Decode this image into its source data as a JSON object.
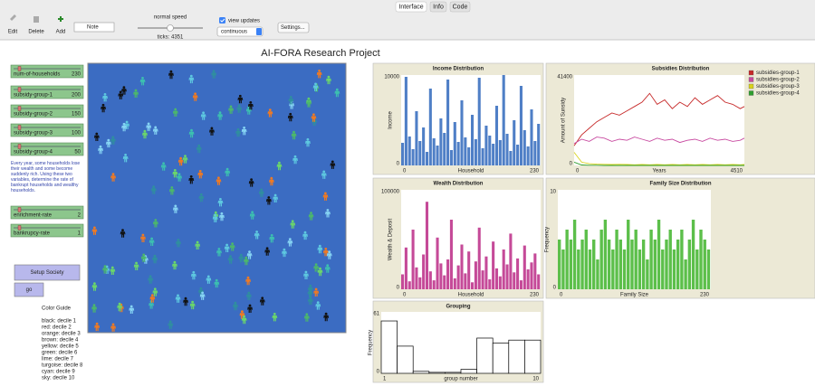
{
  "tabs": [
    "Interface",
    "Info",
    "Code"
  ],
  "toolbar": {
    "edit": "Edit",
    "delete": "Delete",
    "add": "Add",
    "widget": "Note",
    "speed": "normal speed",
    "ticks": "ticks: 4351",
    "view_updates": "view updates",
    "update_mode": "continuous",
    "settings": "Settings..."
  },
  "title": "AI-FORA Research Project",
  "sliders": [
    {
      "label": "num-of-households",
      "value": 230
    },
    {
      "label": "subsidy-group-1",
      "value": 200
    },
    {
      "label": "subsidy-group-2",
      "value": 150
    },
    {
      "label": "subsidy-group-3",
      "value": 100
    },
    {
      "label": "subsidy-group-4",
      "value": 50
    },
    {
      "label": "enrichment-rate",
      "value": 2
    },
    {
      "label": "bankrupcy-rate",
      "value": 1
    }
  ],
  "note": "Every year, some households lose their wealth and some become suddenly rich. Using these two variables, determine the rate of bankrupt households and wealthy households.",
  "buttons": [
    "Setup Society",
    "go"
  ],
  "color_guide": {
    "title": "Color Guide",
    "lines": [
      "black: decile 1",
      "red: decile 2",
      "orange: decile 3",
      "brown: decile 4",
      "yellow: decile 5",
      "green: decile 6",
      "lime: decile 7",
      "turgoise: decile 8",
      "cyan: decile 9",
      "sky: decile 10"
    ]
  },
  "world": {
    "background": "#3b6cc2",
    "agent_colors": [
      "#111111",
      "#f07a22",
      "#4cb86a",
      "#3cc0b0",
      "#86d4f4",
      "#5ec8e0",
      "#6bd66b",
      "#2f8f9e"
    ]
  },
  "plots": [
    {
      "type": "bar",
      "title": "Income Distribution",
      "ylabel": "Income",
      "xlabel": "Household",
      "color": "#4f7fc6",
      "ylim": [
        0,
        10000
      ],
      "yticks": [
        0,
        10000
      ],
      "xticks": [
        0,
        230
      ],
      "values": [
        2500,
        9800,
        3200,
        1800,
        6000,
        2700,
        4200,
        1500,
        8500,
        3000,
        2200,
        5200,
        3600,
        9500,
        1700,
        4800,
        2600,
        7200,
        3100,
        2000,
        5600,
        2900,
        9700,
        1900,
        4400,
        3300,
        2400,
        6600,
        2800,
        10000,
        3500,
        1600,
        5000,
        2300,
        8800,
        3900,
        2100,
        6200,
        2700,
        4600
      ]
    },
    {
      "type": "line",
      "title": "Subsidies Distribution",
      "ylabel": "Amount of Sunsidy",
      "xlabel": "Years",
      "ylim": [
        0,
        41400
      ],
      "yticks": [
        0,
        41400
      ],
      "xlim": [
        0,
        4510
      ],
      "xticks": [
        0,
        4510
      ],
      "x": [
        0,
        200,
        400,
        600,
        800,
        1000,
        1200,
        1400,
        1600,
        1800,
        2000,
        2200,
        2400,
        2600,
        2800,
        3000,
        3200,
        3400,
        3600,
        3800,
        4000,
        4200,
        4400,
        4510
      ],
      "series": [
        {
          "name": "subsidies-group-1",
          "color": "#c62828",
          "values": [
            9000,
            14000,
            17000,
            20000,
            22000,
            24000,
            23000,
            25000,
            27000,
            29000,
            33000,
            28000,
            30000,
            26000,
            29000,
            27000,
            31000,
            28000,
            30000,
            32000,
            29000,
            28000,
            26000,
            27000
          ]
        },
        {
          "name": "subsidies-group-2",
          "color": "#c84aa0",
          "values": [
            10000,
            12000,
            11000,
            13000,
            12500,
            11000,
            12000,
            11500,
            13000,
            12000,
            11000,
            12500,
            11500,
            12000,
            10500,
            11500,
            12000,
            11000,
            12500,
            11500,
            12000,
            11000,
            11500,
            12500
          ]
        },
        {
          "name": "subsidies-group-3",
          "color": "#d9d21a",
          "values": [
            6000,
            1500,
            800,
            600,
            500,
            400,
            500,
            400,
            300,
            400,
            300,
            400,
            300,
            400,
            300,
            400,
            300,
            400,
            300,
            400,
            300,
            400,
            300,
            400
          ]
        },
        {
          "name": "subsidies-group-4",
          "color": "#2e9e2e",
          "values": [
            1500,
            200,
            100,
            100,
            0,
            0,
            0,
            0,
            0,
            0,
            0,
            0,
            0,
            0,
            0,
            0,
            0,
            0,
            0,
            0,
            0,
            0,
            0,
            0
          ]
        }
      ]
    },
    {
      "type": "bar",
      "title": "Wealth Distribution",
      "ylabel": "Wealth & Deposit",
      "xlabel": "Household",
      "color": "#c54a98",
      "ylim": [
        0,
        100000
      ],
      "yticks": [
        0,
        100000
      ],
      "xticks": [
        0,
        230
      ],
      "values": [
        15000,
        42000,
        8000,
        60000,
        22000,
        12000,
        35000,
        88000,
        18000,
        9000,
        52000,
        26000,
        14000,
        30000,
        70000,
        11000,
        24000,
        45000,
        16000,
        38000,
        7000,
        28000,
        62000,
        19000,
        33000,
        10000,
        48000,
        21000,
        13000,
        40000,
        25000,
        56000,
        17000,
        31000,
        9000,
        44000,
        20000,
        27000,
        36000,
        15000
      ]
    },
    {
      "type": "bar",
      "title": "Family Size Distribution",
      "ylabel": "Frequency",
      "xlabel": "Family Size",
      "color": "#5cbf4a",
      "ylim": [
        0,
        10
      ],
      "yticks": [
        0,
        10
      ],
      "xticks": [
        0,
        230
      ],
      "values": [
        5,
        4,
        6,
        5,
        7,
        4,
        5,
        6,
        4,
        5,
        3,
        6,
        7,
        5,
        4,
        6,
        5,
        4,
        7,
        5,
        6,
        4,
        5,
        3,
        6,
        5,
        7,
        4,
        5,
        6,
        4,
        5,
        6,
        3,
        5,
        7,
        4,
        6,
        5,
        4
      ]
    },
    {
      "type": "outline-bar",
      "title": "Grouping",
      "ylabel": "Frequency",
      "xlabel": "group number",
      "color": "#000000",
      "ylim": [
        0,
        61
      ],
      "yticks": [
        0,
        61
      ],
      "xticks": [
        1,
        10
      ],
      "values": [
        52,
        27,
        2,
        1,
        1,
        4,
        35,
        30,
        33,
        33
      ]
    }
  ]
}
